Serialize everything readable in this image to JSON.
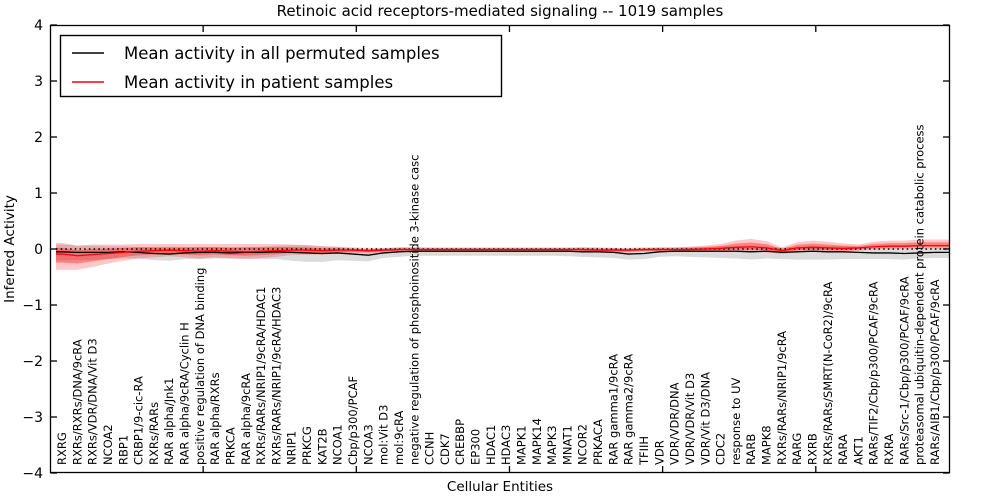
{
  "title": "Retinoic acid receptors-mediated signaling -- 1019 samples",
  "legend": {
    "entries": [
      {
        "label": "Mean activity in all permuted samples",
        "color": "#000000"
      },
      {
        "label": "Mean activity in patient samples",
        "color": "#ff0000"
      }
    ]
  },
  "chart_data": {
    "type": "line",
    "title": "Retinoic acid receptors-mediated signaling -- 1019 samples",
    "xlabel": "Cellular Entities",
    "ylabel": "Inferred Activity",
    "ylim": [
      -4,
      4
    ],
    "yticks": [
      -4,
      -3,
      -2,
      -1,
      0,
      1,
      2,
      3,
      4
    ],
    "grid": false,
    "legend_position": "upper left",
    "zero_line": {
      "value": 0,
      "style": "dotted",
      "color": "#000000"
    },
    "band_inner_scale": 0.55,
    "categories": [
      "RXRG",
      "RXRs/RXRs/DNA/9cRA",
      "RXRs/VDR/DNA/Vit D3",
      "NCOA2",
      "RBP1",
      "CRBP1/9-cic-RA",
      "RXRs/RARs",
      "RAR alpha/Jnk1",
      "RAR alpha/9cRA/Cyclin H",
      "positive regulation of DNA binding",
      "RAR alpha/RXRs",
      "PRKCA",
      "RAR alpha/9cRA",
      "RXRs/RARs/NRIP1/9cRA/HDAC1",
      "RXRs/RARs/NRIP1/9cRA/HDAC3",
      "NRIP1",
      "PRKCG",
      "KAT2B",
      "NCOA1",
      "Cbp/p300/PCAF",
      "NCOA3",
      "mol:Vit D3",
      "mol:9cRA",
      "negative regulation of phosphoinositide 3-kinase casc",
      "CCNH",
      "CDK7",
      "CREBBP",
      "EP300",
      "HDAC1",
      "HDAC3",
      "MAPK1",
      "MAPK14",
      "MAPK3",
      "MNAT1",
      "NCOR2",
      "PRKACA",
      "RAR gamma1/9cRA",
      "RAR gamma2/9cRA",
      "TFIIH",
      "VDR",
      "VDR/VDR/DNA",
      "VDR/VDR/Vit D3",
      "VDR/Vit D3/DNA",
      "CDC2",
      "response to UV",
      "RARB",
      "MAPK8",
      "RXRs/RARs/NRIP1/9cRA",
      "RARG",
      "RXRB",
      "RXRs/RARs/SMRT(N-CoR2)/9cRA",
      "RARA",
      "AKT1",
      "RARs/TIF2/Cbp/p300/PCAF/9cRA",
      "RXRA",
      "RARs/Src-1/Cbp/p300/PCAF/9cRA",
      "proteasomal ubiquitin-dependent protein catabolic process",
      "RARs/AIB1/Cbp/p300/PCAF/9cRA"
    ],
    "series": [
      {
        "name": "Mean activity in all permuted samples",
        "color": "#000000",
        "band_color": "rgba(0,0,0,0.14)",
        "values": [
          -0.05,
          -0.06,
          -0.06,
          -0.06,
          -0.05,
          -0.06,
          -0.08,
          -0.09,
          -0.07,
          -0.06,
          -0.06,
          -0.07,
          -0.06,
          -0.06,
          -0.05,
          -0.06,
          -0.07,
          -0.08,
          -0.07,
          -0.09,
          -0.11,
          -0.07,
          -0.05,
          -0.04,
          -0.04,
          -0.04,
          -0.04,
          -0.04,
          -0.04,
          -0.04,
          -0.04,
          -0.04,
          -0.04,
          -0.04,
          -0.05,
          -0.05,
          -0.06,
          -0.09,
          -0.08,
          -0.05,
          -0.04,
          -0.04,
          -0.04,
          -0.04,
          -0.04,
          -0.05,
          -0.04,
          -0.06,
          -0.05,
          -0.04,
          -0.05,
          -0.05,
          -0.06,
          -0.07,
          -0.07,
          -0.08,
          -0.07,
          -0.06
        ],
        "band_upper": [
          0.08,
          0.06,
          0.06,
          0.05,
          0.05,
          0.04,
          0.02,
          0.01,
          0.02,
          0.04,
          0.03,
          0.02,
          0.04,
          0.04,
          0.06,
          0.07,
          0.07,
          0.05,
          0.04,
          0.01,
          -0.02,
          0.01,
          0.03,
          0.04,
          0.03,
          0.03,
          0.03,
          0.03,
          0.03,
          0.03,
          0.03,
          0.03,
          0.03,
          0.03,
          0.03,
          0.03,
          0.02,
          -0.01,
          0.0,
          0.03,
          0.03,
          0.04,
          0.04,
          0.05,
          0.05,
          0.04,
          0.05,
          0.02,
          0.04,
          0.06,
          0.05,
          0.05,
          0.03,
          0.02,
          0.02,
          0.01,
          0.02,
          0.03
        ],
        "band_lower": [
          -0.2,
          -0.2,
          -0.19,
          -0.18,
          -0.17,
          -0.17,
          -0.2,
          -0.21,
          -0.18,
          -0.18,
          -0.17,
          -0.17,
          -0.17,
          -0.18,
          -0.18,
          -0.21,
          -0.23,
          -0.23,
          -0.2,
          -0.21,
          -0.22,
          -0.16,
          -0.14,
          -0.12,
          -0.12,
          -0.12,
          -0.12,
          -0.12,
          -0.12,
          -0.12,
          -0.12,
          -0.12,
          -0.12,
          -0.13,
          -0.14,
          -0.15,
          -0.16,
          -0.19,
          -0.18,
          -0.14,
          -0.13,
          -0.14,
          -0.15,
          -0.16,
          -0.17,
          -0.19,
          -0.17,
          -0.18,
          -0.19,
          -0.19,
          -0.19,
          -0.18,
          -0.18,
          -0.18,
          -0.18,
          -0.19,
          -0.17,
          -0.16
        ]
      },
      {
        "name": "Mean activity in patient samples",
        "color": "#ff0000",
        "band_color": "rgba(255,0,0,0.22)",
        "inner_band_color": "rgba(255,0,0,0.35)",
        "values": [
          -0.09,
          -0.12,
          -0.1,
          -0.08,
          -0.06,
          -0.04,
          -0.03,
          -0.02,
          -0.03,
          -0.04,
          -0.03,
          -0.04,
          -0.05,
          -0.04,
          -0.03,
          -0.02,
          -0.02,
          -0.03,
          -0.02,
          -0.02,
          -0.03,
          -0.02,
          -0.01,
          -0.01,
          -0.01,
          -0.01,
          -0.01,
          -0.01,
          -0.01,
          -0.01,
          -0.01,
          -0.01,
          -0.01,
          -0.01,
          -0.01,
          -0.02,
          -0.02,
          -0.02,
          -0.01,
          -0.01,
          -0.01,
          -0.01,
          0.0,
          0.01,
          0.03,
          0.04,
          0.02,
          -0.03,
          0.02,
          0.03,
          0.02,
          0.01,
          0.02,
          0.04,
          0.05,
          0.05,
          0.06,
          0.06
        ],
        "band_upper": [
          0.11,
          0.06,
          0.08,
          0.08,
          0.08,
          0.09,
          0.09,
          0.09,
          0.09,
          0.09,
          0.09,
          0.09,
          0.09,
          0.09,
          0.09,
          0.08,
          0.07,
          0.05,
          0.04,
          0.03,
          0.02,
          0.02,
          0.03,
          0.02,
          0.02,
          0.02,
          0.02,
          0.02,
          0.02,
          0.02,
          0.02,
          0.02,
          0.02,
          0.02,
          0.03,
          0.02,
          0.02,
          0.02,
          0.03,
          0.03,
          0.03,
          0.04,
          0.06,
          0.09,
          0.15,
          0.18,
          0.14,
          0.03,
          0.12,
          0.15,
          0.13,
          0.1,
          0.08,
          0.13,
          0.15,
          0.15,
          0.17,
          0.17
        ],
        "band_lower": [
          -0.37,
          -0.37,
          -0.32,
          -0.26,
          -0.21,
          -0.17,
          -0.15,
          -0.13,
          -0.15,
          -0.17,
          -0.15,
          -0.17,
          -0.18,
          -0.16,
          -0.14,
          -0.11,
          -0.1,
          -0.1,
          -0.08,
          -0.07,
          -0.08,
          -0.06,
          -0.05,
          -0.04,
          -0.04,
          -0.04,
          -0.04,
          -0.04,
          -0.04,
          -0.04,
          -0.04,
          -0.04,
          -0.04,
          -0.04,
          -0.05,
          -0.06,
          -0.06,
          -0.06,
          -0.05,
          -0.05,
          -0.05,
          -0.05,
          -0.05,
          -0.05,
          -0.05,
          -0.05,
          -0.06,
          -0.09,
          -0.05,
          -0.05,
          -0.05,
          -0.05,
          -0.03,
          -0.01,
          0.0,
          0.0,
          0.01,
          0.01
        ]
      }
    ]
  }
}
